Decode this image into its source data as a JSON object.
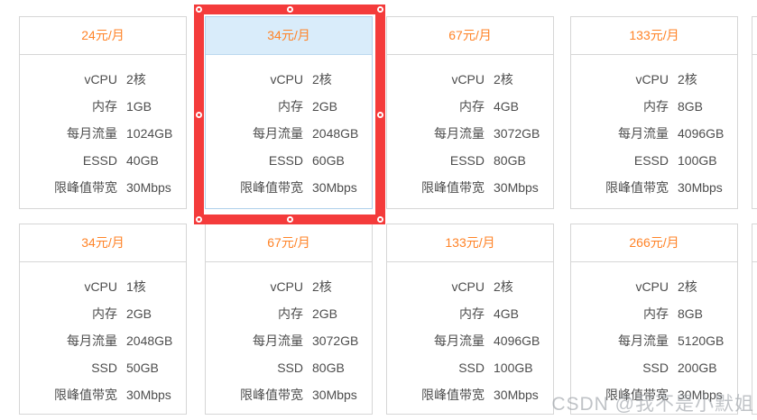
{
  "colors": {
    "price_orange": "#ff8327",
    "selection_red": "#f43b3b",
    "selected_card_border": "#aecfeb",
    "selected_header_bg": "#d9ecfa",
    "card_border": "#d6d6d6",
    "spec_text": "#4d4d4d"
  },
  "watermark": {
    "text": "CSDN @我不是小默姐"
  },
  "grid": {
    "cards": [
      {
        "price": "24元/月",
        "selected": false,
        "specs": [
          {
            "label": "vCPU",
            "value": "2核"
          },
          {
            "label": "内存",
            "value": "1GB"
          },
          {
            "label": "每月流量",
            "value": "1024GB"
          },
          {
            "label": "ESSD",
            "value": "40GB"
          },
          {
            "label": "限峰值带宽",
            "value": "30Mbps"
          }
        ]
      },
      {
        "price": "34元/月",
        "selected": true,
        "specs": [
          {
            "label": "vCPU",
            "value": "2核"
          },
          {
            "label": "内存",
            "value": "2GB"
          },
          {
            "label": "每月流量",
            "value": "2048GB"
          },
          {
            "label": "ESSD",
            "value": "60GB"
          },
          {
            "label": "限峰值带宽",
            "value": "30Mbps"
          }
        ]
      },
      {
        "price": "67元/月",
        "selected": false,
        "specs": [
          {
            "label": "vCPU",
            "value": "2核"
          },
          {
            "label": "内存",
            "value": "4GB"
          },
          {
            "label": "每月流量",
            "value": "3072GB"
          },
          {
            "label": "ESSD",
            "value": "80GB"
          },
          {
            "label": "限峰值带宽",
            "value": "30Mbps"
          }
        ]
      },
      {
        "price": "133元/月",
        "selected": false,
        "specs": [
          {
            "label": "vCPU",
            "value": "2核"
          },
          {
            "label": "内存",
            "value": "8GB"
          },
          {
            "label": "每月流量",
            "value": "4096GB"
          },
          {
            "label": "ESSD",
            "value": "100GB"
          },
          {
            "label": "限峰值带宽",
            "value": "30Mbps"
          }
        ]
      },
      {
        "price": "34元/月",
        "selected": false,
        "specs": [
          {
            "label": "vCPU",
            "value": "1核"
          },
          {
            "label": "内存",
            "value": "2GB"
          },
          {
            "label": "每月流量",
            "value": "2048GB"
          },
          {
            "label": "SSD",
            "value": "50GB"
          },
          {
            "label": "限峰值带宽",
            "value": "30Mbps"
          }
        ]
      },
      {
        "price": "67元/月",
        "selected": false,
        "specs": [
          {
            "label": "vCPU",
            "value": "2核"
          },
          {
            "label": "内存",
            "value": "2GB"
          },
          {
            "label": "每月流量",
            "value": "3072GB"
          },
          {
            "label": "SSD",
            "value": "80GB"
          },
          {
            "label": "限峰值带宽",
            "value": "30Mbps"
          }
        ]
      },
      {
        "price": "133元/月",
        "selected": false,
        "specs": [
          {
            "label": "vCPU",
            "value": "2核"
          },
          {
            "label": "内存",
            "value": "4GB"
          },
          {
            "label": "每月流量",
            "value": "4096GB"
          },
          {
            "label": "SSD",
            "value": "100GB"
          },
          {
            "label": "限峰值带宽",
            "value": "30Mbps"
          }
        ]
      },
      {
        "price": "266元/月",
        "selected": false,
        "specs": [
          {
            "label": "vCPU",
            "value": "2核"
          },
          {
            "label": "内存",
            "value": "8GB"
          },
          {
            "label": "每月流量",
            "value": "5120GB"
          },
          {
            "label": "SSD",
            "value": "200GB"
          },
          {
            "label": "限峰值带宽",
            "value": "30Mbps"
          }
        ]
      }
    ]
  }
}
